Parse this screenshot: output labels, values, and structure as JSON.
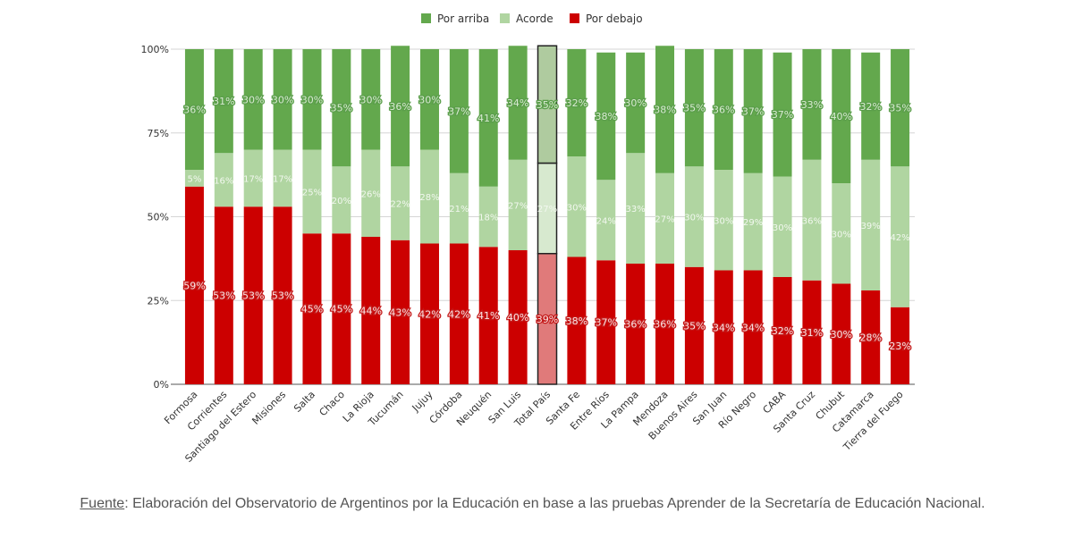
{
  "chart_data": {
    "type": "bar",
    "stacked": true,
    "title": "",
    "xlabel": "",
    "ylabel": "",
    "ylim": [
      0,
      100
    ],
    "yticks": [
      "0%",
      "25%",
      "50%",
      "75%",
      "100%"
    ],
    "ytick_values": [
      0,
      25,
      50,
      75,
      100
    ],
    "grid": true,
    "legend_position": "top-center",
    "highlight_category": "Total País",
    "categories": [
      "Formosa",
      "Corrientes",
      "Santiago del Estero",
      "Misiones",
      "Salta",
      "Chaco",
      "La Rioja",
      "Tucumán",
      "Jujuy",
      "Córdoba",
      "Neuquén",
      "San Luis",
      "Total País",
      "Santa Fe",
      "Entre Ríos",
      "La Pampa",
      "Mendoza",
      "Buenos Aires",
      "San Juan",
      "Río Negro",
      "CABA",
      "Santa Cruz",
      "Chubut",
      "Catamarca",
      "Tierra del Fuego"
    ],
    "series": [
      {
        "name": "Por debajo",
        "color": "#cc0000",
        "values": [
          59,
          53,
          53,
          53,
          45,
          45,
          44,
          43,
          42,
          42,
          41,
          40,
          39,
          38,
          37,
          36,
          36,
          35,
          34,
          34,
          32,
          31,
          30,
          28,
          23
        ]
      },
      {
        "name": "Acorde",
        "color": "#b0d5a1",
        "values": [
          5,
          16,
          17,
          17,
          25,
          20,
          26,
          22,
          28,
          21,
          18,
          27,
          27,
          30,
          24,
          33,
          27,
          30,
          30,
          29,
          30,
          36,
          30,
          39,
          42
        ]
      },
      {
        "name": "Por arriba",
        "color": "#63a84d",
        "values": [
          36,
          31,
          30,
          30,
          30,
          35,
          30,
          36,
          30,
          37,
          41,
          34,
          35,
          32,
          38,
          30,
          38,
          35,
          36,
          37,
          37,
          33,
          40,
          32,
          35
        ]
      }
    ],
    "legend": [
      "Por arriba",
      "Acorde",
      "Por debajo"
    ]
  },
  "footer": {
    "source_label": "Fuente",
    "source_text": ": Elaboración del Observatorio de Argentinos por la Educación en base a las pruebas Aprender de la Secretaría de Educación Nacional."
  }
}
